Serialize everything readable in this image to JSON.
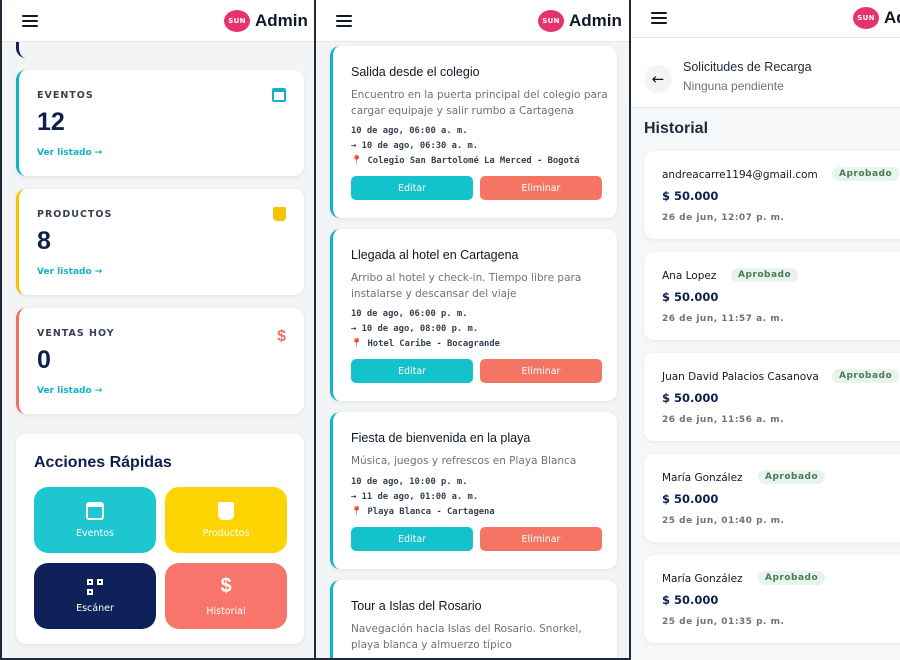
{
  "header": {
    "brand_logo_text": "SUN",
    "title": "Admin"
  },
  "dashboard": {
    "stats": [
      {
        "label": "EVENTOS",
        "value": "12",
        "link": "Ver listado →",
        "icon": "calendar-icon",
        "color": "#12b3c4"
      },
      {
        "label": "PRODUCTOS",
        "value": "8",
        "link": "Ver listado →",
        "icon": "box-icon",
        "color": "#f5c400"
      },
      {
        "label": "VENTAS HOY",
        "value": "0",
        "link": "Ver listado →",
        "icon": "dollar-icon",
        "color": "#ef7162"
      }
    ],
    "quick_actions": {
      "title": "Acciones Rápidas",
      "buttons": [
        {
          "label": "Eventos",
          "icon": "calendar-icon",
          "color": "#1ec6cf"
        },
        {
          "label": "Productos",
          "icon": "box-icon",
          "color": "#fdd400"
        },
        {
          "label": "Escáner",
          "icon": "qr-scanner-icon",
          "color": "#0e2158"
        },
        {
          "label": "Historial",
          "icon": "dollar-icon",
          "color": "#f7756a"
        }
      ]
    }
  },
  "events": {
    "edit_label": "Editar",
    "delete_label": "Eliminar",
    "items": [
      {
        "title": "Salida desde el colegio",
        "description": "Encuentro en la puerta principal del colegio para cargar equipaje y salir rumbo a Cartagena",
        "start": "10 de ago, 06:00 a. m.",
        "end": "→ 10 de ago, 06:30 a. m.",
        "location": "Colegio San Bartolomé La Merced - Bogotá"
      },
      {
        "title": "Llegada al hotel en Cartagena",
        "description": "Arribo al hotel y check-in. Tiempo libre para instalarse y descansar del viaje",
        "start": "10 de ago, 06:00 p. m.",
        "end": "→ 10 de ago, 08:00 p. m.",
        "location": "Hotel Caribe - Bocagrande"
      },
      {
        "title": "Fiesta de bienvenida en la playa",
        "description": "Música, juegos y refrescos en Playa Blanca",
        "start": "10 de ago, 10:00 p. m.",
        "end": "→ 11 de ago, 01:00 a. m.",
        "location": "Playa Blanca - Cartagena"
      },
      {
        "title": "Tour a Islas del Rosario",
        "description": "Navegación hacia Islas del Rosario. Snorkel, playa blanca y almuerzo típico"
      }
    ]
  },
  "recharges": {
    "title": "Solicitudes de Recarga",
    "subtitle": "Ninguna pendiente",
    "history_title": "Historial",
    "items": [
      {
        "name": "andreacarre1194@gmail.com",
        "status": "Aprobado",
        "amount": "$ 50.000",
        "date": "26 de jun, 12:07 p. m."
      },
      {
        "name": "Ana Lopez",
        "status": "Aprobado",
        "amount": "$ 50.000",
        "date": "26 de jun, 11:57 a. m."
      },
      {
        "name": "Juan David Palacios Casanova",
        "status": "Aprobado",
        "amount": "$ 50.000",
        "date": "26 de jun, 11:56 a. m."
      },
      {
        "name": "María González",
        "status": "Aprobado",
        "amount": "$ 50.000",
        "date": "25 de jun, 01:40 p. m."
      },
      {
        "name": "María González",
        "status": "Aprobado",
        "amount": "$ 50.000",
        "date": "25 de jun, 01:35 p. m."
      }
    ]
  }
}
